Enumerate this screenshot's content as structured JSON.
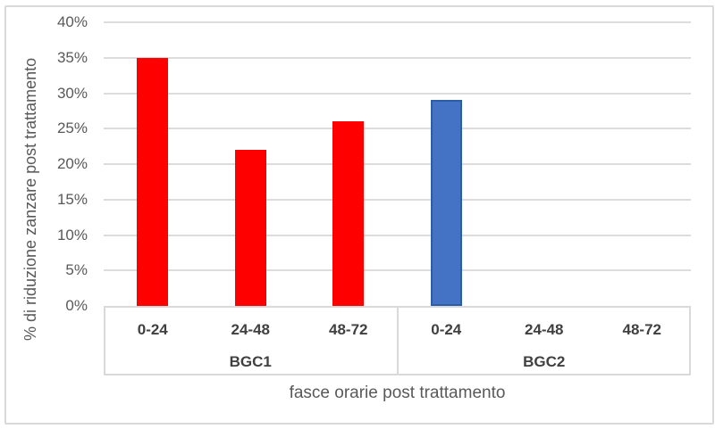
{
  "chart_data": {
    "type": "bar",
    "title": "",
    "ylabel": "% di riduzione zanzare post trattamento",
    "xlabel": "fasce orarie post trattamento",
    "ylim": [
      0,
      40
    ],
    "ytick_step": 5,
    "ytick_labels": [
      "0%",
      "5%",
      "10%",
      "15%",
      "20%",
      "25%",
      "30%",
      "35%",
      "40%"
    ],
    "grid": "horizontal",
    "legend": "none",
    "groups": [
      {
        "name": "BGC1",
        "categories": [
          "0-24",
          "24-48",
          "48-72"
        ],
        "values": [
          35,
          22,
          26
        ],
        "color": "#FF0000",
        "border_color": "#FF0000"
      },
      {
        "name": "BGC2",
        "categories": [
          "0-24",
          "24-48",
          "48-72"
        ],
        "values": [
          29,
          0,
          0
        ],
        "color": "#4472C4",
        "border_color": "#2E5DA6"
      }
    ],
    "colors": {
      "gridline": "#dcdcdc",
      "axis_line": "#d9d9d9",
      "frame_border": "#d9d9d9",
      "tick_text": "#595959",
      "category_text": "#404040",
      "axis_title_text": "#595959"
    }
  }
}
